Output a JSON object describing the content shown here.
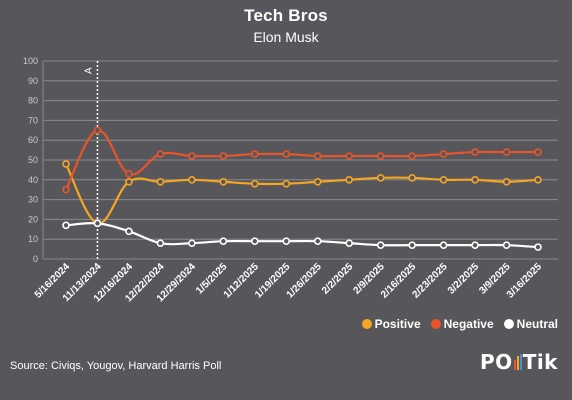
{
  "chart_data": {
    "type": "line",
    "title": "Tech Bros",
    "subtitle": "Elon Musk",
    "categories": [
      "5/16/2024",
      "11/13/2024",
      "12/16/2024",
      "12/22/2024",
      "12/29/2024",
      "1/5/2025",
      "1/12/2025",
      "1/19/2025",
      "1/26/2025",
      "2/2/2025",
      "2/9/2025",
      "2/16/2025",
      "2/23/2025",
      "3/2/2025",
      "3/9/2025",
      "3/16/2025"
    ],
    "ylim": [
      0,
      100
    ],
    "yticks": [
      0,
      10,
      20,
      30,
      40,
      50,
      60,
      70,
      80,
      90,
      100
    ],
    "grid": true,
    "annotation": {
      "label": "A",
      "category_index": 1
    },
    "series": [
      {
        "name": "Positive",
        "color": "#f5a623",
        "values": [
          48,
          18,
          39,
          39,
          40,
          39,
          38,
          38,
          39,
          40,
          41,
          41,
          40,
          40,
          39,
          40
        ]
      },
      {
        "name": "Negative",
        "color": "#e8552a",
        "values": [
          35,
          65,
          43,
          53,
          52,
          52,
          53,
          53,
          52,
          52,
          52,
          52,
          53,
          54,
          54,
          54
        ]
      },
      {
        "name": "Neutral",
        "color": "#ffffff",
        "values": [
          17,
          18,
          14,
          8,
          8,
          9,
          9,
          9,
          9,
          8,
          7,
          7,
          7,
          7,
          7,
          6
        ]
      }
    ]
  },
  "legend_placement": "bottom-right",
  "source": "Source: Civiqs, Yougov, Harvard Harris Poll",
  "logo": {
    "text_left": "PO",
    "text_right": "Tik",
    "bar_colors": [
      "#e8552a",
      "#f5a623",
      "#4a90d9"
    ]
  }
}
